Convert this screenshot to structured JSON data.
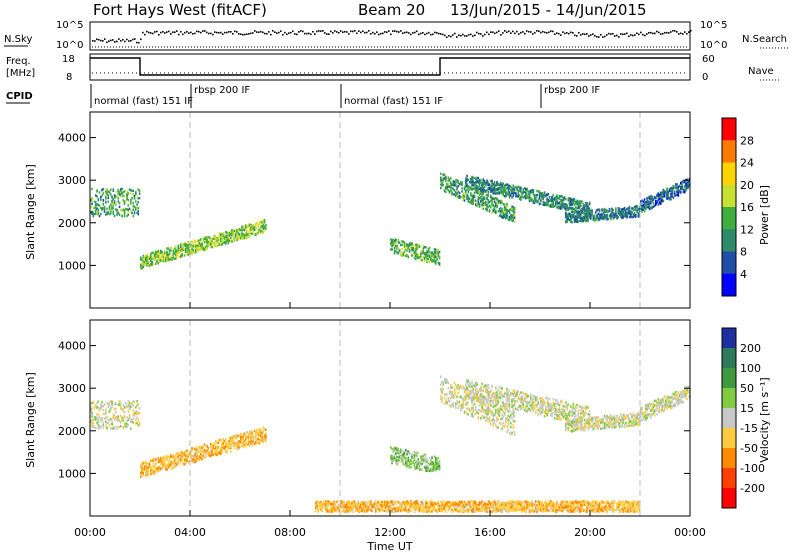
{
  "header": {
    "station": "Fort Hays West (fitACF)",
    "beam": "Beam 20",
    "date_range": "13/Jun/2015 - 14/Jun/2015"
  },
  "summary_panel": {
    "nsky_label": "N.Sky",
    "nsky_ticks": [
      "10^5",
      "10^0"
    ],
    "nsearch_label": "N.Search",
    "nsearch_ticks": [
      "10^5",
      "10^0"
    ],
    "freq_label_1": "Freq.",
    "freq_label_2": "[MHz]",
    "freq_ticks": [
      "18",
      "8"
    ],
    "nave_label": "Nave",
    "nave_ticks": [
      "60",
      "0"
    ],
    "cpid_label": "CPID",
    "cpid_segments": [
      {
        "label": "normal (fast) 151 IF",
        "start_h": 0,
        "end_h": 10
      },
      {
        "label": "rbsp 200 IF",
        "start_h": 4,
        "end_h": 10
      },
      {
        "label": "normal (fast) 151 IF",
        "start_h": 10,
        "end_h": 22
      },
      {
        "label": "rbsp 200 IF",
        "start_h": 18,
        "end_h": 22
      }
    ],
    "freq_steps": [
      {
        "start_h": 0,
        "end_h": 2,
        "mhz": 18
      },
      {
        "start_h": 2,
        "end_h": 14,
        "mhz": 8
      },
      {
        "start_h": 14,
        "end_h": 24,
        "mhz": 18
      }
    ]
  },
  "colorbars": {
    "power": {
      "label": "Power [dB]",
      "ticks": [
        "28",
        "24",
        "20",
        "16",
        "12",
        "8",
        "4"
      ],
      "colors": [
        "#ff0000",
        "#ff7a00",
        "#ffd400",
        "#c8e030",
        "#3fae3f",
        "#2f8a6a",
        "#1f4fa8",
        "#0000ff"
      ]
    },
    "velocity": {
      "label": "Velocity [m s⁻¹]",
      "ticks": [
        "200",
        "100",
        "50",
        "15",
        "-15",
        "-50",
        "-100",
        "-200"
      ],
      "colors": [
        "#1f2fa0",
        "#2f7a5a",
        "#3f9a3f",
        "#80cc40",
        "#c8c8c8",
        "#ffcc40",
        "#ff8a00",
        "#ff4000",
        "#ff0000"
      ]
    }
  },
  "chart_data": [
    {
      "type": "heatmap",
      "panel": "power",
      "xlabel": "Time UT",
      "ylabel": "Slant Range [km]",
      "xlim_h": [
        0,
        24
      ],
      "ylim": [
        0,
        4600
      ],
      "x_ticks": [
        "00:00",
        "04:00",
        "08:00",
        "12:00",
        "16:00",
        "20:00",
        "00:00"
      ],
      "y_ticks": [
        1000,
        2000,
        3000,
        4000
      ],
      "clim": [
        0,
        32
      ],
      "bands": [
        {
          "t": [
            0,
            2
          ],
          "r0": [
            2500,
            2500
          ],
          "r1": [
            2500,
            2500
          ],
          "width": 650,
          "value": 12
        },
        {
          "t": [
            2,
            7
          ],
          "r0": [
            1100,
            1950
          ],
          "r1": [
            1100,
            1950
          ],
          "width": 300,
          "value": 16
        },
        {
          "t": [
            12,
            14
          ],
          "r0": [
            1500,
            1200
          ],
          "r1": [
            1500,
            1200
          ],
          "width": 350,
          "value": 14
        },
        {
          "t": [
            14,
            17
          ],
          "r0": [
            3000,
            2200
          ],
          "r1": [
            3000,
            2200
          ],
          "width": 400,
          "value": 12
        },
        {
          "t": [
            15,
            20
          ],
          "r0": [
            3000,
            2350
          ],
          "r1": [
            3000,
            2350
          ],
          "width": 300,
          "value": 10
        },
        {
          "t": [
            19,
            22
          ],
          "r0": [
            2150,
            2300
          ],
          "r1": [
            2150,
            2300
          ],
          "width": 250,
          "value": 9
        },
        {
          "t": [
            22,
            24
          ],
          "r0": [
            2400,
            2950
          ],
          "r1": [
            2400,
            2950
          ],
          "width": 300,
          "value": 8
        }
      ]
    },
    {
      "type": "heatmap",
      "panel": "velocity",
      "xlabel": "Time UT",
      "ylabel": "Slant Range [km]",
      "xlim_h": [
        0,
        24
      ],
      "ylim": [
        0,
        4600
      ],
      "x_ticks": [
        "00:00",
        "04:00",
        "08:00",
        "12:00",
        "16:00",
        "20:00",
        "00:00"
      ],
      "y_ticks": [
        1000,
        2000,
        3000,
        4000
      ],
      "clim": [
        -200,
        200
      ],
      "bands": [
        {
          "t": [
            0,
            2
          ],
          "r0": [
            2400,
            2400
          ],
          "r1": [
            2400,
            2400
          ],
          "width": 650,
          "value": 0
        },
        {
          "t": [
            2,
            7
          ],
          "r0": [
            1100,
            1950
          ],
          "r1": [
            1100,
            1950
          ],
          "width": 350,
          "value": -40
        },
        {
          "t": [
            12,
            14
          ],
          "r0": [
            1450,
            1200
          ],
          "r1": [
            1450,
            1200
          ],
          "width": 400,
          "value": 30
        },
        {
          "t": [
            14,
            17
          ],
          "r0": [
            3000,
            2200
          ],
          "r1": [
            3000,
            2200
          ],
          "width": 600,
          "value": 0
        },
        {
          "t": [
            15,
            20
          ],
          "r0": [
            3000,
            2350
          ],
          "r1": [
            3000,
            2350
          ],
          "width": 450,
          "value": 0
        },
        {
          "t": [
            19,
            22
          ],
          "r0": [
            2150,
            2300
          ],
          "r1": [
            2150,
            2300
          ],
          "width": 300,
          "value": 0
        },
        {
          "t": [
            22,
            24
          ],
          "r0": [
            2400,
            2950
          ],
          "r1": [
            2400,
            2950
          ],
          "width": 350,
          "value": 0
        },
        {
          "t": [
            9,
            22
          ],
          "r0": [
            250,
            250
          ],
          "r1": [
            250,
            250
          ],
          "width": 250,
          "value": -40
        }
      ]
    }
  ]
}
